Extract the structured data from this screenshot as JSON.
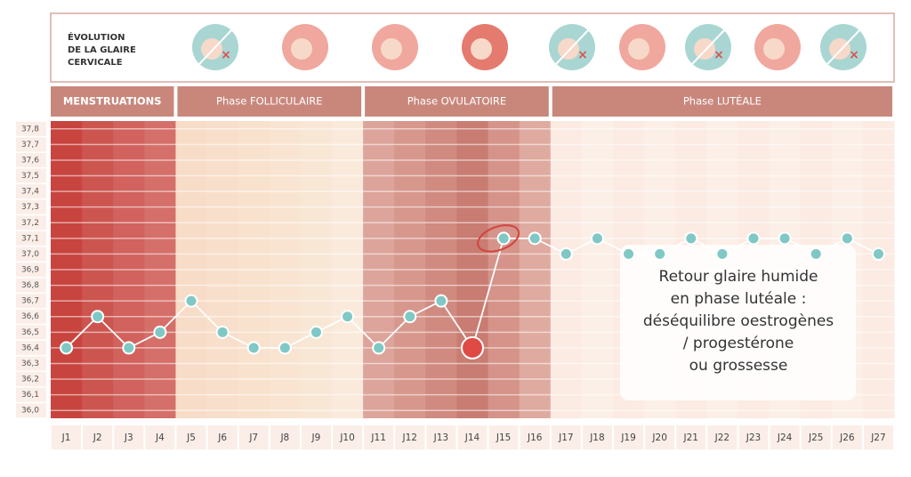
{
  "chart_data": {
    "type": "line",
    "header_lines": [
      "ÉVOLUTION",
      "DE LA GLAIRE",
      "CERVICALE"
    ],
    "phases": [
      "MENSTRUATIONS",
      "Phase FOLLICULAIRE",
      "Phase OVULATOIRE",
      "Phase LUTÉALE"
    ],
    "categories": [
      "J1",
      "J2",
      "J3",
      "J4",
      "J5",
      "J6",
      "J7",
      "J8",
      "J9",
      "J10",
      "J11",
      "J12",
      "J13",
      "J14",
      "J15",
      "J16",
      "J17",
      "J18",
      "J19",
      "J20",
      "J21",
      "J22",
      "J23",
      "J24",
      "J25",
      "J26",
      "J27"
    ],
    "values": [
      36.4,
      36.6,
      36.4,
      36.5,
      36.7,
      36.5,
      36.4,
      36.4,
      36.5,
      36.6,
      36.4,
      36.6,
      36.7,
      36.4,
      37.1,
      37.1,
      37.0,
      37.1,
      37.0,
      37.0,
      37.1,
      37.0,
      37.1,
      37.1,
      37.0,
      37.1,
      37.0
    ],
    "color": "#7fc8c5",
    "ylim": [
      35.95,
      37.85
    ],
    "yticks": [
      {
        "value": 36.0,
        "label": "36,0"
      },
      {
        "value": 36.1,
        "label": "36,1"
      },
      {
        "value": 36.2,
        "label": "36,2"
      },
      {
        "value": 36.3,
        "label": "36,3"
      },
      {
        "value": 36.4,
        "label": "36,4"
      },
      {
        "value": 36.5,
        "label": "36,5"
      },
      {
        "value": 36.6,
        "label": "36,6"
      },
      {
        "value": 36.7,
        "label": "36,7"
      },
      {
        "value": 36.8,
        "label": "36,8"
      },
      {
        "value": 36.9,
        "label": "36,9"
      },
      {
        "value": 37.0,
        "label": "37,0"
      },
      {
        "value": 37.1,
        "label": "37,1"
      },
      {
        "value": 37.2,
        "label": "37,2"
      },
      {
        "value": 37.3,
        "label": "37,3"
      },
      {
        "value": 37.4,
        "label": "37,4"
      },
      {
        "value": 37.5,
        "label": "37,5"
      },
      {
        "value": 37.6,
        "label": "37,6"
      },
      {
        "value": 37.7,
        "label": "37,7"
      },
      {
        "value": 37.8,
        "label": "37,8"
      }
    ],
    "grid": true,
    "annotation_lines": [
      "Retour glaire humide",
      "en phase lutéale :",
      "déséquilibre oestrogènes",
      "/ progestérone",
      "ou grossesse"
    ]
  }
}
